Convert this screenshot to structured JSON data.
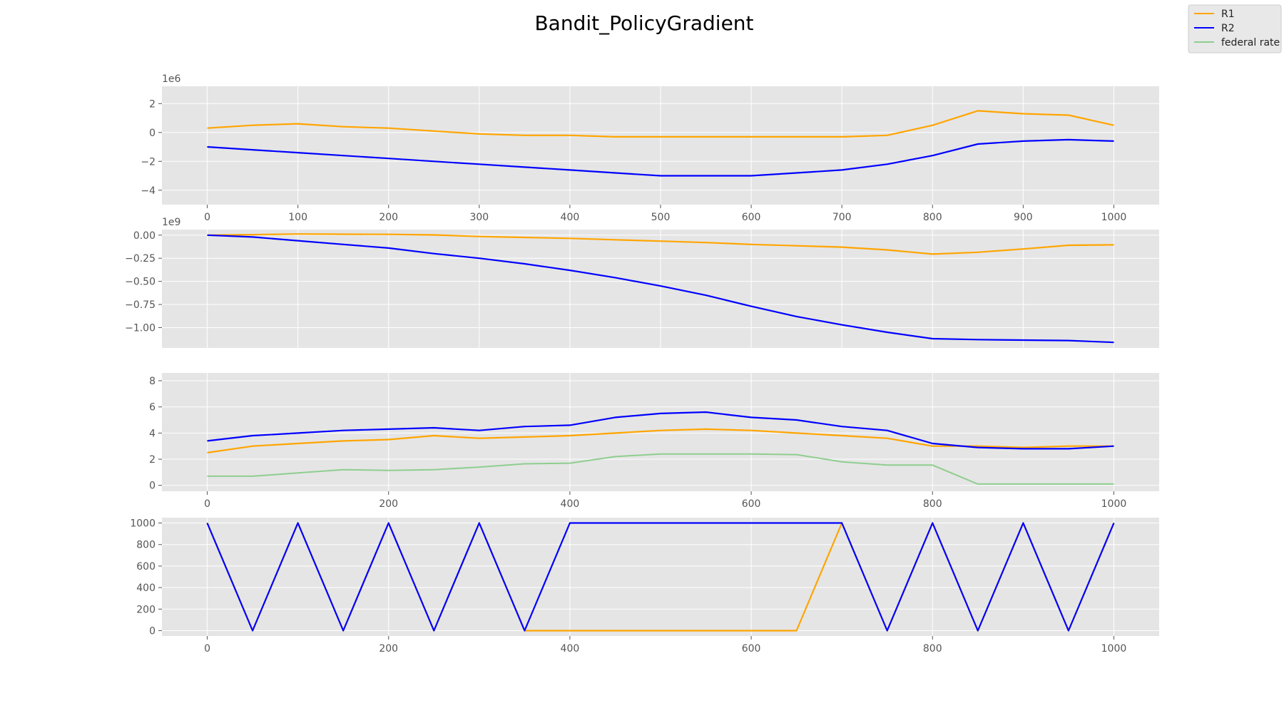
{
  "figure": {
    "title": "Bandit_PolicyGradient",
    "legend": {
      "placement": "top-right",
      "entries": [
        {
          "label": "R1",
          "color": "#ffa500"
        },
        {
          "label": "R2",
          "color": "#0000ff"
        },
        {
          "label": "federal rate",
          "color": "#8fce8f"
        }
      ]
    },
    "colors": {
      "R1": "#ffa500",
      "R2": "#0000ff",
      "federal rate": "#8fce8f",
      "axes_bg": "#e5e5e5",
      "grid": "#ffffff",
      "tick_text": "#555555"
    }
  },
  "chart_data": [
    {
      "type": "line",
      "x": [
        0,
        50,
        100,
        150,
        200,
        250,
        300,
        350,
        400,
        450,
        500,
        550,
        600,
        650,
        700,
        750,
        800,
        850,
        900,
        950,
        1000
      ],
      "series": [
        {
          "name": "R1",
          "values": [
            0.3,
            0.5,
            0.6,
            0.4,
            0.3,
            0.1,
            -0.1,
            -0.2,
            -0.2,
            -0.3,
            -0.3,
            -0.3,
            -0.3,
            -0.3,
            -0.3,
            -0.2,
            0.5,
            1.5,
            1.3,
            1.2,
            0.5
          ]
        },
        {
          "name": "R2",
          "values": [
            -1.0,
            -1.2,
            -1.4,
            -1.6,
            -1.8,
            -2.0,
            -2.2,
            -2.4,
            -2.6,
            -2.8,
            -3.0,
            -3.0,
            -3.0,
            -2.8,
            -2.6,
            -2.2,
            -1.6,
            -0.8,
            -0.6,
            -0.5,
            -0.6
          ]
        }
      ],
      "offset_label": "1e6",
      "xlim": [
        -50,
        1050
      ],
      "ylim": [
        -5.0,
        3.2
      ],
      "xticks": [
        0,
        100,
        200,
        300,
        400,
        500,
        600,
        700,
        800,
        900,
        1000
      ],
      "yticks": [
        -4,
        -2,
        0,
        2
      ],
      "ytick_labels": [
        "−4",
        "−2",
        "0",
        "2"
      ],
      "grid": true
    },
    {
      "type": "line",
      "x": [
        0,
        50,
        100,
        150,
        200,
        250,
        300,
        350,
        400,
        450,
        500,
        550,
        600,
        650,
        700,
        750,
        800,
        850,
        900,
        950,
        1000
      ],
      "series": [
        {
          "name": "R1",
          "values": [
            0.0,
            0.005,
            0.012,
            0.01,
            0.008,
            0.002,
            -0.015,
            -0.025,
            -0.035,
            -0.05,
            -0.065,
            -0.08,
            -0.1,
            -0.115,
            -0.13,
            -0.16,
            -0.205,
            -0.185,
            -0.15,
            -0.11,
            -0.105
          ]
        },
        {
          "name": "R2",
          "values": [
            0.0,
            -0.02,
            -0.06,
            -0.1,
            -0.14,
            -0.2,
            -0.25,
            -0.31,
            -0.38,
            -0.46,
            -0.55,
            -0.65,
            -0.77,
            -0.88,
            -0.97,
            -1.05,
            -1.12,
            -1.13,
            -1.135,
            -1.14,
            -1.16
          ]
        }
      ],
      "offset_label": "1e9",
      "xlim": [
        -50,
        1050
      ],
      "ylim": [
        -1.22,
        0.06
      ],
      "yticks": [
        0.0,
        -0.25,
        -0.5,
        -0.75,
        -1.0
      ],
      "ytick_labels": [
        "0.00",
        "−0.25",
        "−0.50",
        "−0.75",
        "−1.00"
      ],
      "grid": true
    },
    {
      "type": "line",
      "x": [
        0,
        50,
        100,
        150,
        200,
        250,
        300,
        350,
        400,
        450,
        500,
        550,
        600,
        650,
        700,
        750,
        800,
        850,
        900,
        950,
        1000
      ],
      "series": [
        {
          "name": "R1",
          "values": [
            2.5,
            3.0,
            3.2,
            3.4,
            3.5,
            3.8,
            3.6,
            3.7,
            3.8,
            4.0,
            4.2,
            4.3,
            4.2,
            4.0,
            3.8,
            3.6,
            3.0,
            3.0,
            2.9,
            3.0,
            3.0
          ]
        },
        {
          "name": "R2",
          "values": [
            3.4,
            3.8,
            4.0,
            4.2,
            4.3,
            4.4,
            4.2,
            4.5,
            4.6,
            5.2,
            5.5,
            5.6,
            5.2,
            5.0,
            4.5,
            4.2,
            3.2,
            2.9,
            2.8,
            2.8,
            3.0
          ]
        },
        {
          "name": "federal rate",
          "values": [
            0.7,
            0.7,
            0.95,
            1.2,
            1.15,
            1.2,
            1.4,
            1.65,
            1.7,
            2.2,
            2.4,
            2.4,
            2.4,
            2.35,
            1.8,
            1.55,
            1.55,
            0.1,
            0.1,
            0.1,
            0.1
          ]
        }
      ],
      "xlim": [
        -50,
        1050
      ],
      "ylim": [
        -0.45,
        8.6
      ],
      "xticks": [
        0,
        200,
        400,
        600,
        800,
        1000
      ],
      "yticks": [
        0,
        2,
        4,
        6,
        8
      ],
      "ytick_labels": [
        "0",
        "2",
        "4",
        "6",
        "8"
      ],
      "grid": true
    },
    {
      "type": "line",
      "x": [
        0,
        50,
        100,
        150,
        200,
        250,
        300,
        350,
        400,
        450,
        500,
        550,
        600,
        650,
        700,
        750,
        800,
        850,
        900,
        950,
        1000
      ],
      "series": [
        {
          "name": "R1",
          "values": [
            1000,
            0,
            1000,
            0,
            1000,
            0,
            1000,
            0,
            0,
            0,
            0,
            0,
            0,
            0,
            1000,
            0,
            1000,
            0,
            1000,
            0,
            1000
          ]
        },
        {
          "name": "R2",
          "values": [
            1000,
            0,
            1000,
            0,
            1000,
            0,
            1000,
            0,
            1000,
            1000,
            1000,
            1000,
            1000,
            1000,
            1000,
            0,
            1000,
            0,
            1000,
            0,
            1000
          ]
        }
      ],
      "xlim": [
        -50,
        1050
      ],
      "ylim": [
        -50,
        1050
      ],
      "xticks": [
        0,
        200,
        400,
        600,
        800,
        1000
      ],
      "yticks": [
        0,
        200,
        400,
        600,
        800,
        1000
      ],
      "ytick_labels": [
        "0",
        "200",
        "400",
        "600",
        "800",
        "1000"
      ],
      "grid": true
    }
  ]
}
